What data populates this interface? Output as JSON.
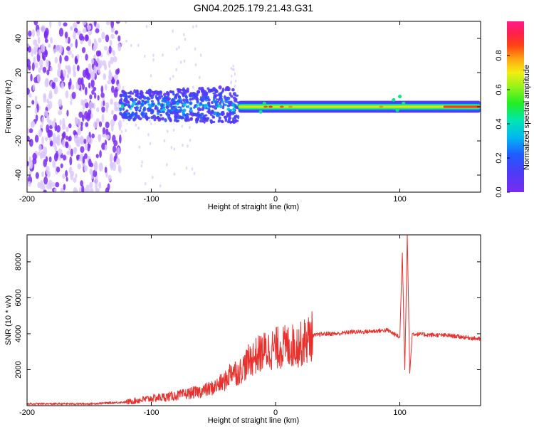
{
  "title": "GN04.2025.179.21.43.G31",
  "colors": {
    "snr_line": "#e8302c",
    "axis": "#000000",
    "scatter_low": "#7b2cf2",
    "scatter_faint": "#d9c6fb"
  },
  "chart_data": [
    {
      "type": "heatmap",
      "xlabel": "Height of straight line (km)",
      "ylabel": "Frequency (Hz)",
      "xlim": [
        -200,
        165
      ],
      "ylim": [
        -50,
        50
      ],
      "xticks": [
        -200,
        -100,
        0,
        100
      ],
      "yticks": [
        -40,
        -20,
        0,
        20,
        40
      ],
      "grid": false,
      "colorbar": {
        "label": "Normalized spectral amplitude",
        "range": [
          0,
          1
        ],
        "ticks": [
          0.0,
          0.2,
          0.4,
          0.6,
          0.8
        ],
        "colormap": "rainbow (purple-blue-cyan-green-yellow-red-pink)"
      },
      "features": [
        {
          "region": "x -200 to -125",
          "description": "broad scatter across all frequencies",
          "amplitude": 0.1
        },
        {
          "region": "x -125 to -30",
          "frequency_spread_hz": [
            -8,
            10
          ],
          "amplitude": 0.3
        },
        {
          "region": "x -30 to 165",
          "frequency_hz": 0,
          "amplitude": 0.6
        },
        {
          "region": "near x 0 and x 140 to 165",
          "frequency_hz": 0,
          "amplitude": 0.9
        }
      ]
    },
    {
      "type": "line",
      "xlabel": "Height of straight line (km)",
      "ylabel": "SNR (10 * v/v)",
      "xlim": [
        -200,
        165
      ],
      "ylim": [
        0,
        9500
      ],
      "xticks": [
        -200,
        -100,
        0,
        100
      ],
      "yticks": [
        2000,
        4000,
        6000,
        8000
      ],
      "grid": false,
      "series": [
        {
          "points": [
            [
              -200,
              100
            ],
            [
              -150,
              100
            ],
            [
              -120,
              200
            ],
            [
              -100,
              400
            ],
            [
              -80,
              550
            ],
            [
              -60,
              800
            ],
            [
              -50,
              1000
            ],
            [
              -40,
              1400
            ],
            [
              -35,
              2000
            ],
            [
              -30,
              1800
            ],
            [
              -20,
              2600
            ],
            [
              -10,
              3000
            ],
            [
              0,
              3200
            ],
            [
              10,
              3300
            ],
            [
              20,
              3400
            ],
            [
              30,
              3900
            ],
            [
              40,
              4000
            ],
            [
              50,
              4000
            ],
            [
              60,
              4100
            ],
            [
              70,
              4100
            ],
            [
              80,
              4150
            ],
            [
              90,
              4200
            ],
            [
              95,
              4000
            ],
            [
              100,
              3800
            ],
            [
              102,
              8500
            ],
            [
              104,
              2000
            ],
            [
              106,
              9500
            ],
            [
              108,
              1800
            ],
            [
              110,
              4000
            ],
            [
              120,
              3950
            ],
            [
              140,
              3900
            ],
            [
              165,
              3700
            ]
          ]
        }
      ]
    }
  ]
}
